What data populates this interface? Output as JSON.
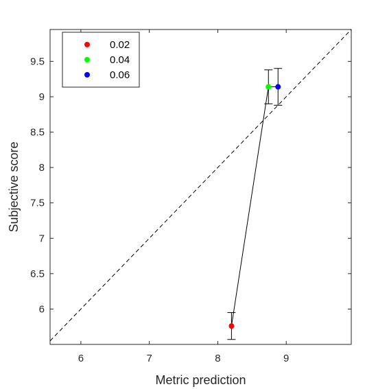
{
  "chart_data": {
    "type": "scatter",
    "title": "",
    "xlabel": "Metric prediction",
    "ylabel": "Subjective score",
    "xlim": [
      5.55,
      9.95
    ],
    "ylim": [
      5.5,
      9.95
    ],
    "xticks": [
      6,
      7,
      8,
      9
    ],
    "yticks": [
      6,
      6.5,
      7,
      7.5,
      8,
      8.5,
      9,
      9.5
    ],
    "xtick_labels": [
      "6",
      "7",
      "8",
      "9"
    ],
    "ytick_labels": [
      "6",
      "6.5",
      "7",
      "7.5",
      "8",
      "8.5",
      "9",
      "9.5"
    ],
    "grid": false,
    "legend_position": "top-left",
    "reference_line": "y = x (dashed)",
    "connect_points": true,
    "series": [
      {
        "name": "0.02",
        "color": "#ff0000",
        "x": 8.2,
        "y": 5.76,
        "err_low": 5.57,
        "err_high": 5.95
      },
      {
        "name": "0.04",
        "color": "#00ff00",
        "x": 8.74,
        "y": 9.14,
        "err_low": 8.9,
        "err_high": 9.38
      },
      {
        "name": "0.06",
        "color": "#0000ff",
        "x": 8.88,
        "y": 9.14,
        "err_low": 8.88,
        "err_high": 9.4
      }
    ]
  }
}
